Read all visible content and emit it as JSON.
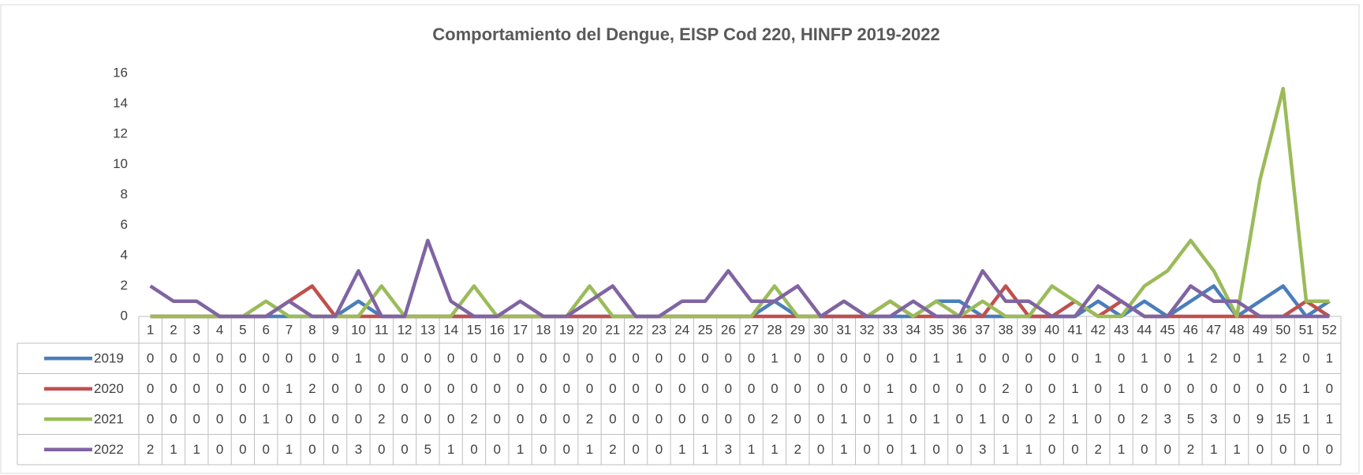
{
  "chart_data": {
    "type": "line",
    "title": "Comportamiento del Dengue, EISP Cod 220, HINFP 2019-2022",
    "categories": [
      "1",
      "2",
      "3",
      "4",
      "5",
      "6",
      "7",
      "8",
      "9",
      "10",
      "11",
      "12",
      "13",
      "14",
      "15",
      "16",
      "17",
      "18",
      "19",
      "20",
      "21",
      "22",
      "23",
      "24",
      "25",
      "26",
      "27",
      "28",
      "29",
      "30",
      "31",
      "32",
      "33",
      "34",
      "35",
      "36",
      "37",
      "38",
      "39",
      "40",
      "41",
      "42",
      "43",
      "44",
      "45",
      "46",
      "47",
      "48",
      "49",
      "50",
      "51",
      "52"
    ],
    "series": [
      {
        "name": "2019",
        "color": "#4a7ebb",
        "values": [
          0,
          0,
          0,
          0,
          0,
          0,
          0,
          0,
          0,
          1,
          0,
          0,
          0,
          0,
          0,
          0,
          0,
          0,
          0,
          0,
          0,
          0,
          0,
          0,
          0,
          0,
          0,
          1,
          0,
          0,
          0,
          0,
          0,
          0,
          1,
          1,
          0,
          0,
          0,
          0,
          0,
          1,
          0,
          1,
          0,
          1,
          2,
          0,
          1,
          2,
          0,
          1
        ]
      },
      {
        "name": "2020",
        "color": "#c0504d",
        "values": [
          0,
          0,
          0,
          0,
          0,
          0,
          1,
          2,
          0,
          0,
          0,
          0,
          0,
          0,
          0,
          0,
          0,
          0,
          0,
          0,
          0,
          0,
          0,
          0,
          0,
          0,
          0,
          0,
          0,
          0,
          0,
          0,
          1,
          0,
          0,
          0,
          0,
          2,
          0,
          0,
          1,
          0,
          1,
          0,
          0,
          0,
          0,
          0,
          0,
          0,
          1,
          0
        ]
      },
      {
        "name": "2021",
        "color": "#9bbb59",
        "values": [
          0,
          0,
          0,
          0,
          0,
          1,
          0,
          0,
          0,
          0,
          2,
          0,
          0,
          0,
          2,
          0,
          0,
          0,
          0,
          2,
          0,
          0,
          0,
          0,
          0,
          0,
          0,
          2,
          0,
          0,
          1,
          0,
          1,
          0,
          1,
          0,
          1,
          0,
          0,
          2,
          1,
          0,
          0,
          2,
          3,
          5,
          3,
          0,
          9,
          15,
          1,
          1
        ]
      },
      {
        "name": "2022",
        "color": "#8064a2",
        "values": [
          2,
          1,
          1,
          0,
          0,
          0,
          1,
          0,
          0,
          3,
          0,
          0,
          5,
          1,
          0,
          0,
          1,
          0,
          0,
          1,
          2,
          0,
          0,
          1,
          1,
          3,
          1,
          1,
          2,
          0,
          1,
          0,
          0,
          1,
          0,
          0,
          3,
          1,
          1,
          0,
          0,
          2,
          1,
          0,
          0,
          2,
          1,
          1,
          0,
          0,
          0,
          0
        ]
      }
    ],
    "ylim": [
      0,
      16
    ],
    "yticks": [
      0,
      2,
      4,
      6,
      8,
      10,
      12,
      14,
      16
    ],
    "grid": false,
    "data_table": true
  }
}
